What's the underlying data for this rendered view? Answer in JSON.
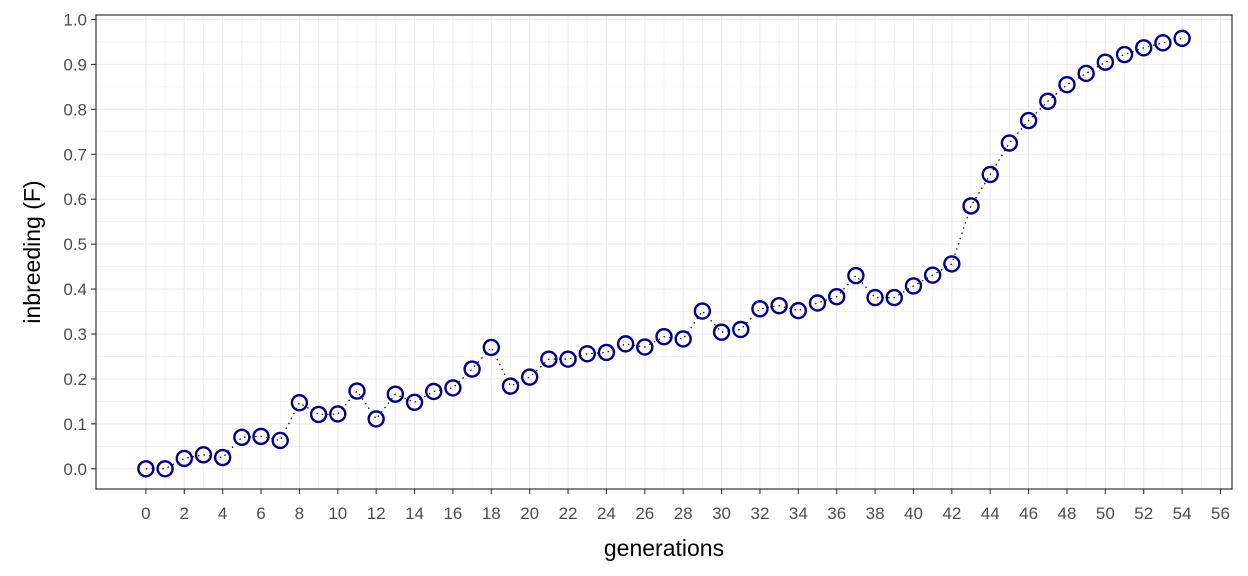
{
  "chart_data": {
    "type": "scatter",
    "title": "",
    "xlabel": "generations",
    "ylabel": "inbreeding (F)",
    "xlim": [
      -2.6,
      56.6
    ],
    "ylim": [
      -0.045,
      1.01
    ],
    "x_ticks": [
      0,
      2,
      4,
      6,
      8,
      10,
      12,
      14,
      16,
      18,
      20,
      22,
      24,
      26,
      28,
      30,
      32,
      34,
      36,
      38,
      40,
      42,
      44,
      46,
      48,
      50,
      52,
      54,
      56
    ],
    "y_ticks": [
      0.0,
      0.1,
      0.2,
      0.3,
      0.4,
      0.5,
      0.6,
      0.7,
      0.8,
      0.9,
      1.0
    ],
    "x_tick_labels": [
      "0",
      "2",
      "4",
      "6",
      "8",
      "10",
      "12",
      "14",
      "16",
      "18",
      "20",
      "22",
      "24",
      "26",
      "28",
      "30",
      "32",
      "34",
      "36",
      "38",
      "40",
      "42",
      "44",
      "46",
      "48",
      "50",
      "52",
      "54",
      "56"
    ],
    "y_tick_labels": [
      "0.0",
      "0.1",
      "0.2",
      "0.3",
      "0.4",
      "0.5",
      "0.6",
      "0.7",
      "0.8",
      "0.9",
      "1.0"
    ],
    "grid": true,
    "legend": "none",
    "colors": {
      "point": "#000080",
      "line": "#000000",
      "grid": "#ebebeb",
      "panel_border": "#333333"
    },
    "series": [
      {
        "x": [
          0,
          1,
          2,
          3,
          4,
          5,
          6,
          7,
          8,
          9,
          10,
          11,
          12,
          13,
          14,
          15,
          16,
          17,
          18,
          19,
          20,
          21,
          22,
          23,
          24,
          25,
          26,
          27,
          28,
          29,
          30,
          31,
          32,
          33,
          34,
          35,
          36,
          37,
          38,
          39,
          40,
          41,
          42,
          43,
          44,
          45,
          46,
          47,
          48,
          49,
          50,
          51,
          52,
          53,
          54
        ],
        "y": [
          0.0,
          0.0,
          0.023,
          0.031,
          0.025,
          0.07,
          0.072,
          0.063,
          0.147,
          0.121,
          0.122,
          0.173,
          0.111,
          0.166,
          0.148,
          0.172,
          0.18,
          0.222,
          0.27,
          0.184,
          0.204,
          0.244,
          0.244,
          0.256,
          0.259,
          0.278,
          0.271,
          0.294,
          0.289,
          0.351,
          0.304,
          0.31,
          0.356,
          0.363,
          0.352,
          0.369,
          0.383,
          0.43,
          0.381,
          0.381,
          0.407,
          0.431,
          0.456,
          0.585,
          0.655,
          0.725,
          0.775,
          0.818,
          0.855,
          0.88,
          0.905,
          0.922,
          0.937,
          0.948,
          0.958
        ]
      }
    ]
  }
}
